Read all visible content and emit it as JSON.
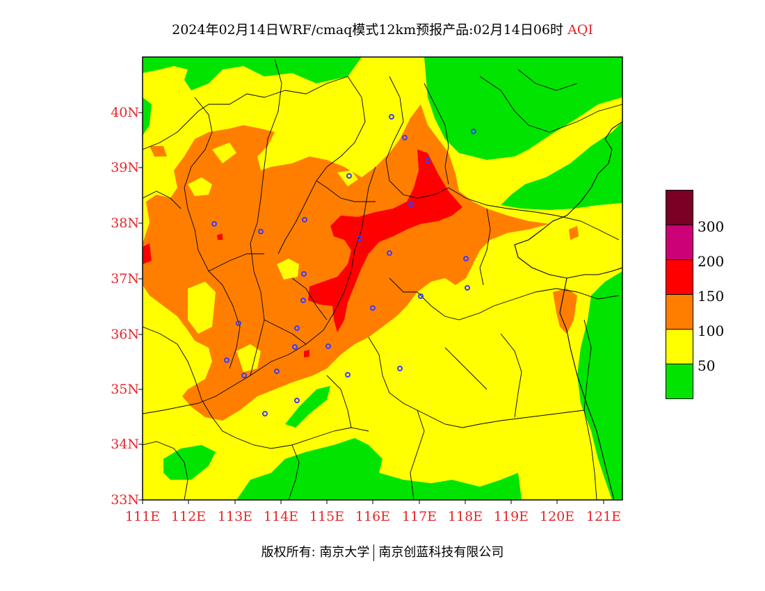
{
  "title": {
    "main": "2024年02月14日WRF/cmaq模式12km预报产品:02月14日06时",
    "variable": "AQI"
  },
  "axes": {
    "lat_labels": [
      "40N",
      "39N",
      "38N",
      "37N",
      "36N",
      "35N",
      "34N",
      "33N"
    ],
    "lon_labels": [
      "111E",
      "112E",
      "113E",
      "114E",
      "115E",
      "116E",
      "117E",
      "118E",
      "119E",
      "120E",
      "121E"
    ]
  },
  "legend": {
    "levels": [
      "300",
      "200",
      "150",
      "100",
      "50"
    ],
    "colors": [
      "#7a0025",
      "#cc0077",
      "#ff0000",
      "#ff7e00",
      "#ffff00",
      "#00e400"
    ]
  },
  "colors": {
    "good": "#00e400",
    "moderate": "#ffff00",
    "usg": "#ff7e00",
    "unhealthy": "#ff0000",
    "very_unhealthy": "#cc0077",
    "hazardous": "#7a0025",
    "station": "#3b3bff",
    "tick": "#e8242a"
  },
  "footer": {
    "copyright": "版权所有: 南京大学",
    "company": "南京创蓝科技有限公司"
  }
}
